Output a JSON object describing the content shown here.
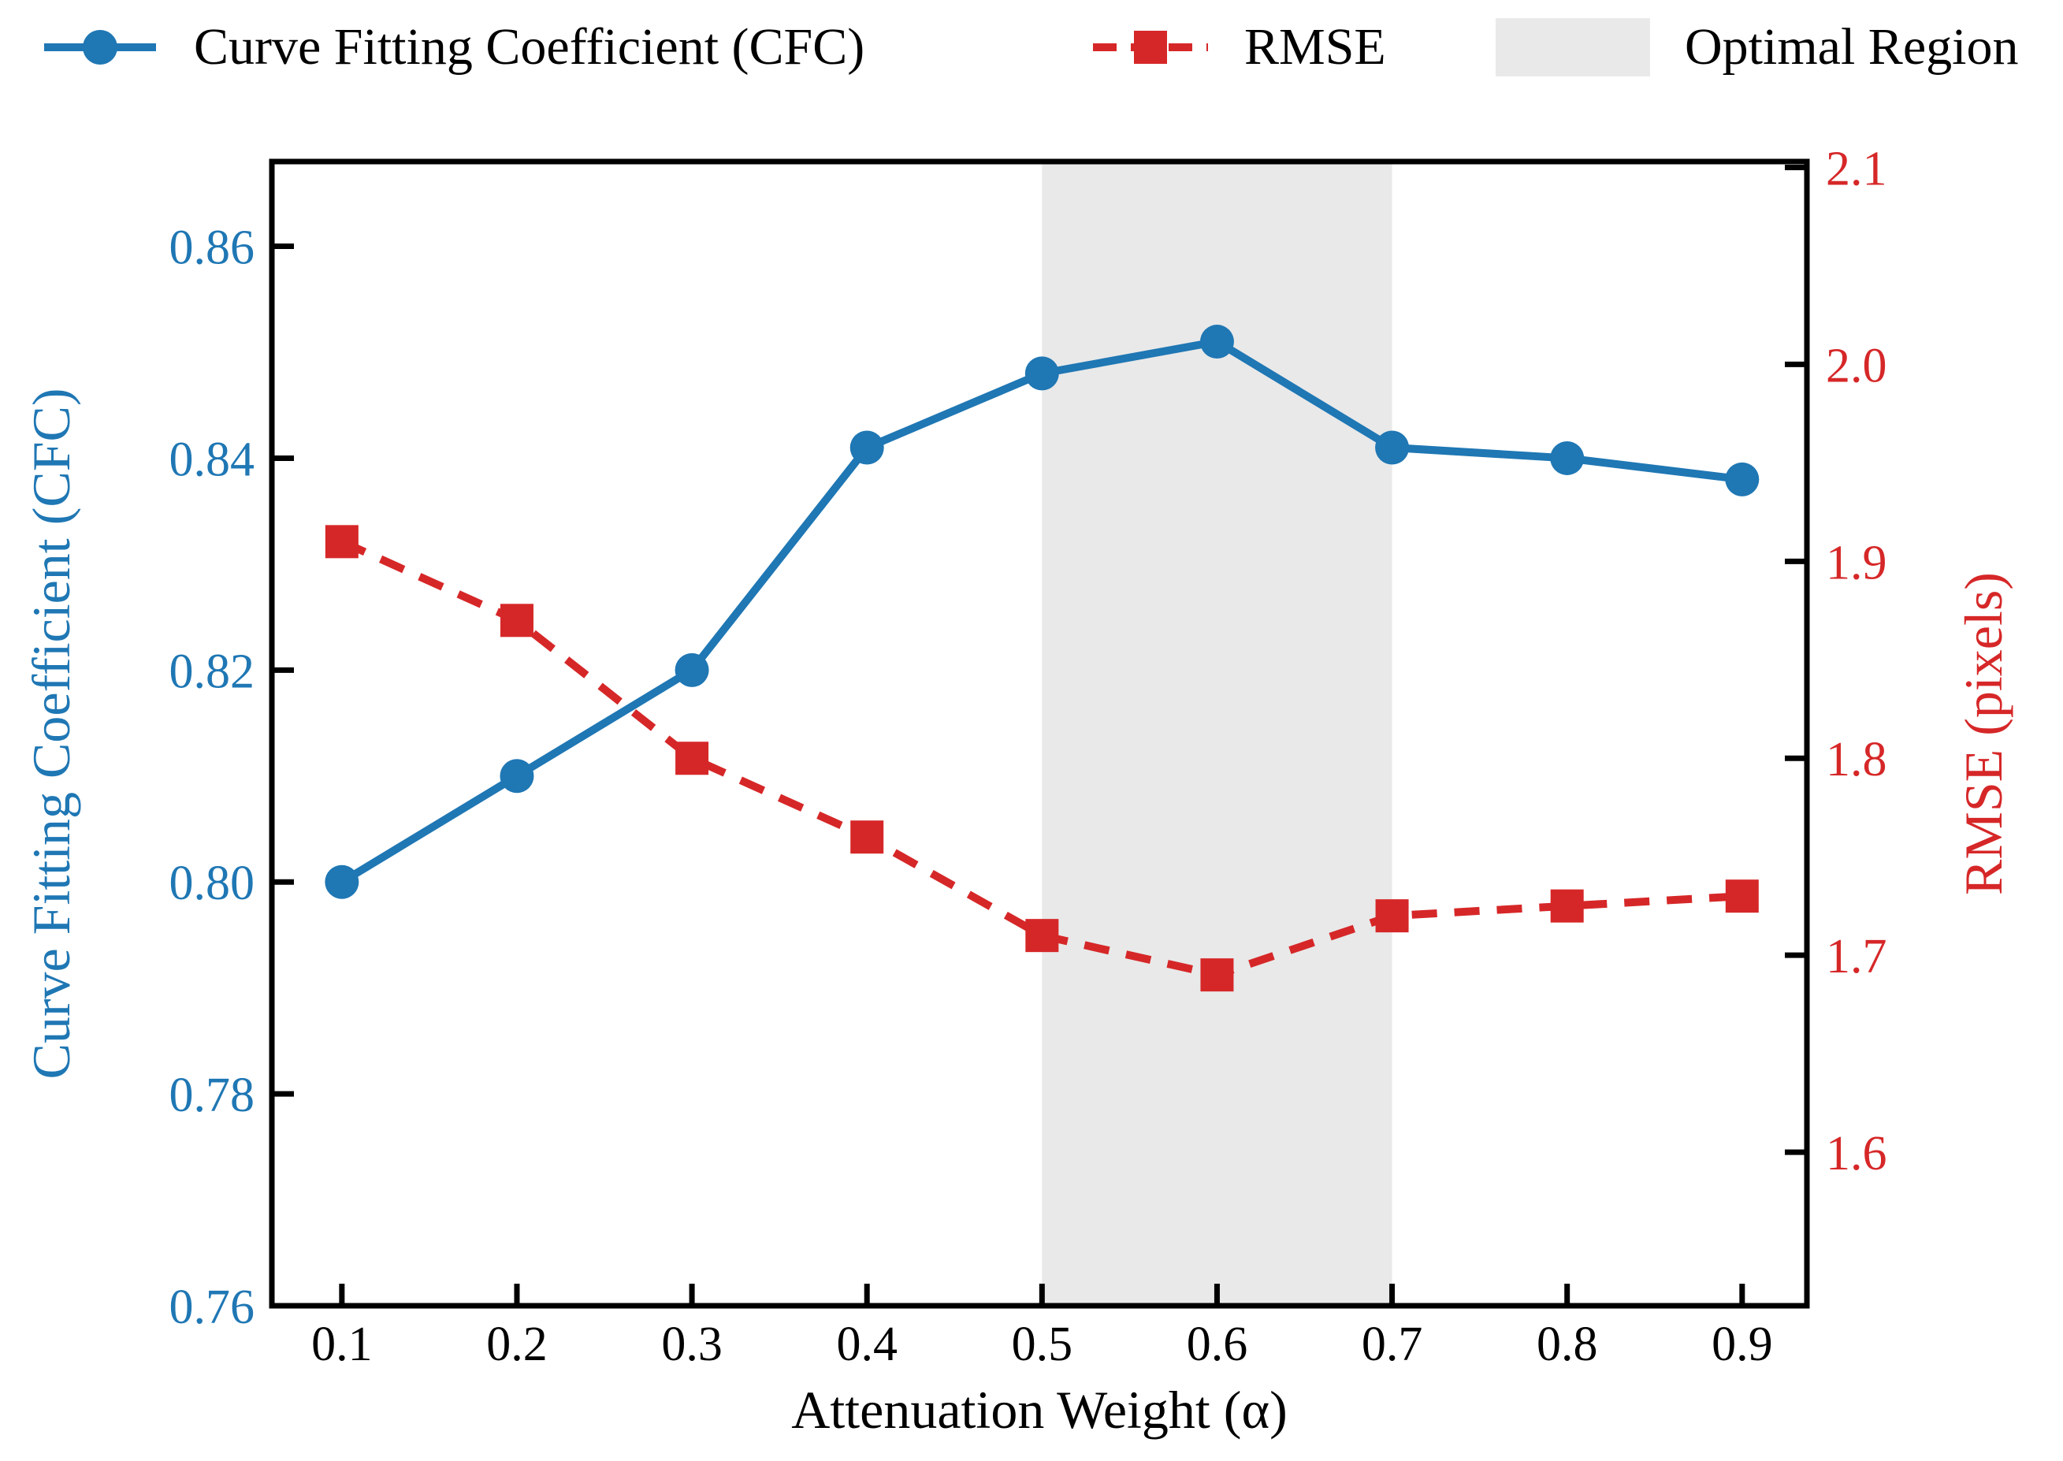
{
  "legend": {
    "cfc_label": "Curve Fitting Coefficient (CFC)",
    "rmse_label": "RMSE",
    "region_label": "Optimal Region"
  },
  "colors": {
    "cfc_blue": "#1f77b4",
    "rmse_red": "#d62728",
    "region_gray": "#e9e9e9",
    "axis_black": "#000000"
  },
  "chart_data": {
    "type": "line",
    "x": [
      0.1,
      0.2,
      0.3,
      0.4,
      0.5,
      0.6,
      0.7,
      0.8,
      0.9
    ],
    "series": [
      {
        "name": "Curve Fitting Coefficient (CFC)",
        "axis": "left",
        "color": "#1f77b4",
        "linestyle": "solid",
        "marker": "circle",
        "values": [
          0.8,
          0.81,
          0.82,
          0.841,
          0.848,
          0.851,
          0.841,
          0.84,
          0.838
        ]
      },
      {
        "name": "RMSE",
        "axis": "right",
        "color": "#d62728",
        "linestyle": "dashed",
        "marker": "square",
        "values": [
          1.91,
          1.87,
          1.8,
          1.76,
          1.71,
          1.69,
          1.72,
          1.725,
          1.73
        ]
      }
    ],
    "optimal_region": {
      "x_start": 0.5,
      "x_end": 0.7,
      "color": "#e9e9e9",
      "label": "Optimal Region"
    },
    "x_axis": {
      "label": "Attenuation Weight (α)",
      "min": 0.06,
      "max": 0.937,
      "tick_values": [
        0.1,
        0.2,
        0.3,
        0.4,
        0.5,
        0.6,
        0.7,
        0.8,
        0.9
      ],
      "tick_labels": [
        "0.1",
        "0.2",
        "0.3",
        "0.4",
        "0.5",
        "0.6",
        "0.7",
        "0.8",
        "0.9"
      ]
    },
    "y_left": {
      "label": "Curve Fitting Coefficient (CFC)",
      "min": 0.76,
      "max": 0.868,
      "color": "#1f77b4",
      "tick_values": [
        0.76,
        0.78,
        0.8,
        0.82,
        0.84,
        0.86
      ],
      "tick_labels": [
        "0.76",
        "0.78",
        "0.80",
        "0.82",
        "0.84",
        "0.86"
      ]
    },
    "y_right": {
      "label": "RMSE (pixels)",
      "min": 1.522,
      "max": 2.103,
      "color": "#d62728",
      "tick_values": [
        1.6,
        1.7,
        1.8,
        1.9,
        2.0,
        2.1
      ],
      "tick_labels": [
        "1.6",
        "1.7",
        "1.8",
        "1.9",
        "2.0",
        "2.1"
      ]
    },
    "grid": false,
    "legend_position": "top"
  }
}
